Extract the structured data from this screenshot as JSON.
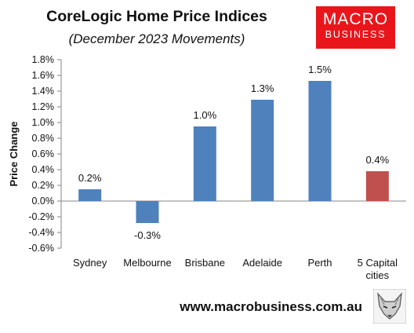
{
  "header": {
    "title": "CoreLogic Home Price Indices",
    "subtitle": "(December 2023 Movements)"
  },
  "logo": {
    "line1": "MACRO",
    "line2": "BUSINESS"
  },
  "footer": {
    "url": "www.macrobusiness.com.au",
    "mascot_icon": "fox-icon"
  },
  "colors": {
    "bar": "#4f81bd",
    "highlight": "#c0504d",
    "axis": "#868686"
  },
  "chart_data": {
    "type": "bar",
    "title": "CoreLogic Home Price Indices",
    "subtitle": "(December 2023 Movements)",
    "xlabel": "",
    "ylabel": "Price Change",
    "ylim": [
      -0.6,
      1.8
    ],
    "ytick_step": 0.2,
    "ytick_labels": [
      "1.8%",
      "1.6%",
      "1.4%",
      "1.2%",
      "1.0%",
      "0.8%",
      "0.6%",
      "0.4%",
      "0.2%",
      "0.0%",
      "-0.2%",
      "-0.4%",
      "-0.6%"
    ],
    "grid": false,
    "legend": "none",
    "categories": [
      "Sydney",
      "Melbourne",
      "Brisbane",
      "Adelaide",
      "Perth",
      "5 Capital cities"
    ],
    "values": [
      0.15,
      -0.28,
      0.95,
      1.29,
      1.53,
      0.38
    ],
    "data_labels": [
      "0.2%",
      "-0.3%",
      "1.0%",
      "1.3%",
      "1.5%",
      "0.4%"
    ],
    "highlight_index": 5
  }
}
